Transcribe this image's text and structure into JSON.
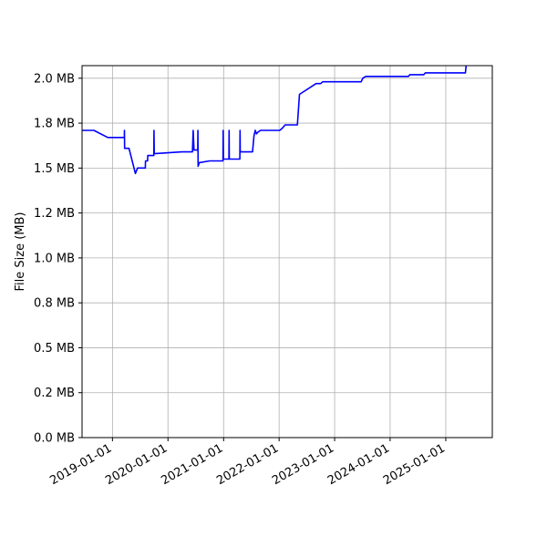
{
  "chart_data": {
    "type": "line",
    "title": "",
    "xlabel": "",
    "ylabel": "File Size (MB)",
    "x_axis_type": "date",
    "xlim": [
      "2018-06-15",
      "2025-11-03"
    ],
    "ylim": [
      0,
      2.07
    ],
    "grid": true,
    "line_color": "#0000ff",
    "x_ticks": [
      {
        "date": "2019-01-01",
        "label": "2019-01-01"
      },
      {
        "date": "2020-01-01",
        "label": "2020-01-01"
      },
      {
        "date": "2021-01-01",
        "label": "2021-01-01"
      },
      {
        "date": "2022-01-01",
        "label": "2022-01-01"
      },
      {
        "date": "2023-01-01",
        "label": "2023-01-01"
      },
      {
        "date": "2024-01-01",
        "label": "2024-01-01"
      },
      {
        "date": "2025-01-01",
        "label": "2025-01-01"
      }
    ],
    "y_ticks": [
      {
        "value": 0.0,
        "label": "0.0 MB"
      },
      {
        "value": 0.25,
        "label": "0.2 MB"
      },
      {
        "value": 0.5,
        "label": "0.5 MB"
      },
      {
        "value": 0.75,
        "label": "0.8 MB"
      },
      {
        "value": 1.0,
        "label": "1.0 MB"
      },
      {
        "value": 1.25,
        "label": "1.2 MB"
      },
      {
        "value": 1.5,
        "label": "1.5 MB"
      },
      {
        "value": 1.75,
        "label": "1.8 MB"
      },
      {
        "value": 2.0,
        "label": "2.0 MB"
      }
    ],
    "series": [
      {
        "points": [
          [
            "2018-06-15",
            1.71
          ],
          [
            "2018-09-01",
            1.71
          ],
          [
            "2018-12-01",
            1.67
          ],
          [
            "2019-03-20",
            1.67
          ],
          [
            "2019-03-21",
            1.71
          ],
          [
            "2019-03-22",
            1.61
          ],
          [
            "2019-04-20",
            1.61
          ],
          [
            "2019-06-01",
            1.47
          ],
          [
            "2019-06-15",
            1.5
          ],
          [
            "2019-08-05",
            1.5
          ],
          [
            "2019-08-06",
            1.54
          ],
          [
            "2019-08-20",
            1.54
          ],
          [
            "2019-08-21",
            1.57
          ],
          [
            "2019-09-30",
            1.57
          ],
          [
            "2019-10-01",
            1.71
          ],
          [
            "2019-10-03",
            1.58
          ],
          [
            "2020-04-01",
            1.59
          ],
          [
            "2020-06-10",
            1.59
          ],
          [
            "2020-06-15",
            1.71
          ],
          [
            "2020-06-20",
            1.6
          ],
          [
            "2020-07-15",
            1.6
          ],
          [
            "2020-07-16",
            1.71
          ],
          [
            "2020-07-17",
            1.51
          ],
          [
            "2020-07-25",
            1.53
          ],
          [
            "2020-10-01",
            1.54
          ],
          [
            "2020-12-28",
            1.54
          ],
          [
            "2020-12-29",
            1.71
          ],
          [
            "2020-12-31",
            1.55
          ],
          [
            "2021-02-05",
            1.55
          ],
          [
            "2021-02-06",
            1.71
          ],
          [
            "2021-02-07",
            1.55
          ],
          [
            "2021-04-18",
            1.55
          ],
          [
            "2021-04-19",
            1.71
          ],
          [
            "2021-04-20",
            1.59
          ],
          [
            "2021-07-10",
            1.59
          ],
          [
            "2021-07-20",
            1.68
          ],
          [
            "2021-07-28",
            1.71
          ],
          [
            "2021-08-05",
            1.69
          ],
          [
            "2021-08-15",
            1.7
          ],
          [
            "2021-09-01",
            1.71
          ],
          [
            "2022-01-05",
            1.71
          ],
          [
            "2022-01-20",
            1.72
          ],
          [
            "2022-02-10",
            1.74
          ],
          [
            "2022-05-01",
            1.74
          ],
          [
            "2022-05-15",
            1.91
          ],
          [
            "2022-09-01",
            1.97
          ],
          [
            "2022-10-01",
            1.97
          ],
          [
            "2022-10-15",
            1.98
          ],
          [
            "2023-06-25",
            1.98
          ],
          [
            "2023-07-05",
            2.0
          ],
          [
            "2023-07-25",
            2.01
          ],
          [
            "2024-05-01",
            2.01
          ],
          [
            "2024-05-10",
            2.02
          ],
          [
            "2024-08-10",
            2.02
          ],
          [
            "2024-08-20",
            2.03
          ],
          [
            "2025-05-10",
            2.03
          ],
          [
            "2025-05-15",
            2.07
          ]
        ]
      }
    ]
  }
}
